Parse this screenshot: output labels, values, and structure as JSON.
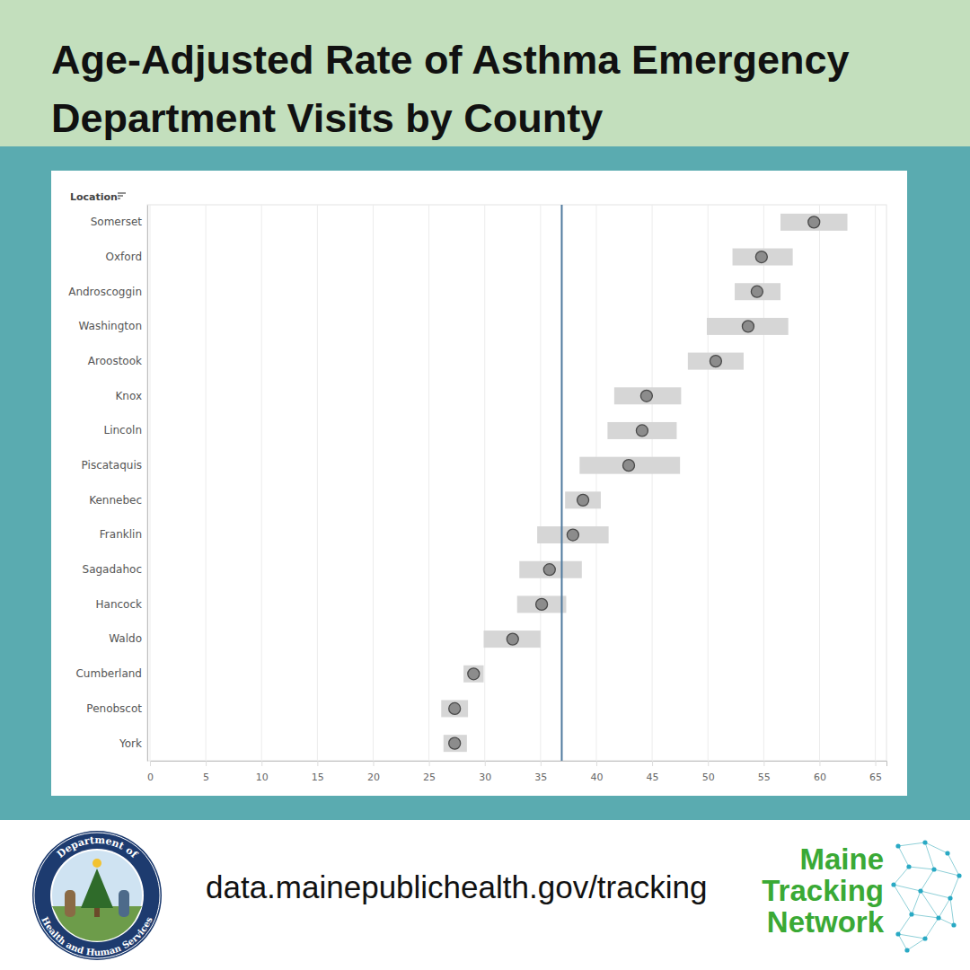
{
  "chart_data": {
    "type": "dot",
    "orientation": "horizontal",
    "title": "Age-Adjusted Rate of Asthma Emergency Department Visits by County",
    "y_label": "Location",
    "categories": [
      "Somerset",
      "Oxford",
      "Androscoggin",
      "Washington",
      "Aroostook",
      "Knox",
      "Lincoln",
      "Piscataquis",
      "Kennebec",
      "Franklin",
      "Sagadahoc",
      "Hancock",
      "Waldo",
      "Cumberland",
      "Penobscot",
      "York"
    ],
    "values": [
      59.5,
      54.8,
      54.4,
      53.6,
      50.7,
      44.5,
      44.1,
      42.9,
      38.8,
      37.9,
      35.8,
      35.1,
      32.5,
      29.0,
      27.3,
      27.3
    ],
    "lower": [
      56.5,
      52.2,
      52.4,
      49.9,
      48.2,
      41.6,
      41.0,
      38.5,
      37.2,
      34.7,
      33.1,
      32.9,
      29.9,
      28.1,
      26.1,
      26.3
    ],
    "upper": [
      62.5,
      57.6,
      56.5,
      57.2,
      53.2,
      47.6,
      47.2,
      47.5,
      40.4,
      41.1,
      38.7,
      37.3,
      35.0,
      29.9,
      28.5,
      28.4
    ],
    "reference_line": 36.9,
    "xlim": [
      0,
      66
    ],
    "xticks": [
      0,
      5,
      10,
      15,
      20,
      25,
      30,
      35,
      40,
      45,
      50,
      55,
      60,
      65
    ],
    "grid": true
  },
  "footer": {
    "url": "data.mainepublichealth.gov/tracking",
    "logo_lines": [
      "Maine",
      "Tracking",
      "Network"
    ],
    "seal_top": "Department of",
    "seal_bottom": "Health and Human Services"
  }
}
